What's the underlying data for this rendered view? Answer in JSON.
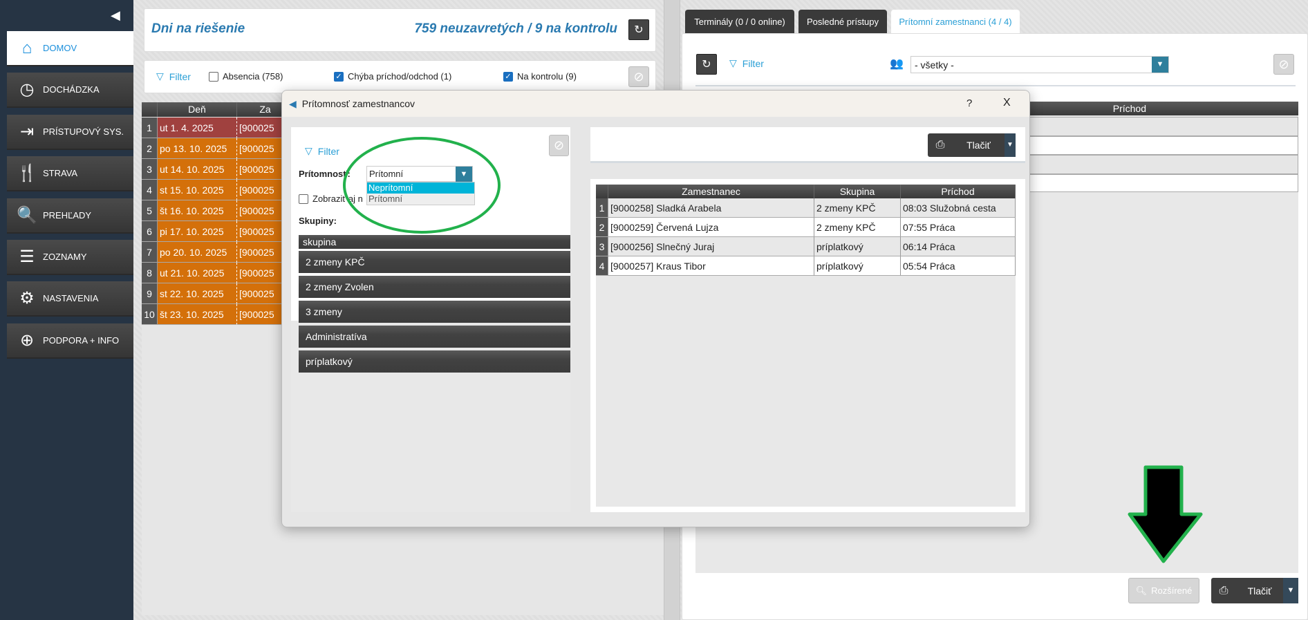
{
  "sidebar": {
    "items": [
      {
        "label": "DOMOV",
        "icon": "home-icon",
        "glyph": "⌂"
      },
      {
        "label": "DOCHÁDZKA",
        "icon": "clock-icon",
        "glyph": "◷"
      },
      {
        "label": "PRÍSTUPOVÝ SYS.",
        "icon": "sign-in-icon",
        "glyph": "⇥"
      },
      {
        "label": "STRAVA",
        "icon": "cutlery-icon",
        "glyph": "🍴"
      },
      {
        "label": "PREHĽADY",
        "icon": "search-icon",
        "glyph": "🔍"
      },
      {
        "label": "ZOZNAMY",
        "icon": "list-icon",
        "glyph": "☰"
      },
      {
        "label": "NASTAVENIA",
        "icon": "gear-icon",
        "glyph": "⚙"
      },
      {
        "label": "PODPORA + INFO",
        "icon": "lifebuoy-icon",
        "glyph": "⊕"
      }
    ]
  },
  "left": {
    "title": "Dni na riešenie",
    "summary": "759 neuzavretých / 9 na kontrolu",
    "filter": "Filter",
    "checks": [
      {
        "label": "Absencia (758)",
        "checked": false
      },
      {
        "label": "Chýba príchod/odchod (1)",
        "checked": true
      },
      {
        "label": "Na kontrolu (9)",
        "checked": true
      }
    ],
    "table": {
      "headers": [
        "Deň",
        "Za"
      ],
      "rows": [
        {
          "n": "1",
          "day": "ut 1. 4. 2025",
          "id": "[900025"
        },
        {
          "n": "2",
          "day": "po 13. 10. 2025",
          "id": "[900025"
        },
        {
          "n": "3",
          "day": "ut 14. 10. 2025",
          "id": "[900025"
        },
        {
          "n": "4",
          "day": "st 15. 10. 2025",
          "id": "[900025"
        },
        {
          "n": "5",
          "day": "št 16. 10. 2025",
          "id": "[900025"
        },
        {
          "n": "6",
          "day": "pi 17. 10. 2025",
          "id": "[900025"
        },
        {
          "n": "7",
          "day": "po 20. 10. 2025",
          "id": "[900025"
        },
        {
          "n": "8",
          "day": "ut 21. 10. 2025",
          "id": "[900025"
        },
        {
          "n": "9",
          "day": "st 22. 10. 2025",
          "id": "[900025"
        },
        {
          "n": "10",
          "day": "št 23. 10. 2025",
          "id": "[900025"
        }
      ]
    },
    "colors": {
      "red_row": "#a0413f",
      "orange_row": "#d4700a"
    }
  },
  "right": {
    "tabs": [
      "Terminály (0 / 0 online)",
      "Posledné prístupy",
      "Prítomní zamestnanci (4 / 4)"
    ],
    "filter": "Filter",
    "group_select": "- všetky -",
    "table_header": "Príchod",
    "advanced": "Rozšírené",
    "print": "Tlačiť"
  },
  "dialog": {
    "title": "Prítomnosť zamestnancov",
    "help": "?",
    "close": "X",
    "filter": "Filter",
    "presence_label": "Prítomnosť:",
    "presence_value": "Prítomní",
    "presence_options": [
      "Neprítomní",
      "Prítomní"
    ],
    "show_label": "Zobraziť aj n",
    "groups_label": "Skupiny:",
    "groups_header": "skupina",
    "groups": [
      "2 zmeny KPČ",
      "2 zmeny Zvolen",
      "3 zmeny",
      "Administratíva",
      "príplatkový"
    ],
    "print": "Tlačiť",
    "table": {
      "headers": [
        "Zamestnanec",
        "Skupina",
        "Príchod"
      ],
      "rows": [
        {
          "n": "1",
          "name": "[9000258] Sladká Arabela",
          "group": "2 zmeny KPČ",
          "arrival": "08:03 Služobná cesta"
        },
        {
          "n": "2",
          "name": "[9000259] Červená Lujza",
          "group": "2 zmeny KPČ",
          "arrival": "07:55 Práca"
        },
        {
          "n": "3",
          "name": "[9000256] Slnečný Juraj",
          "group": "príplatkový",
          "arrival": "06:14 Práca"
        },
        {
          "n": "4",
          "name": "[9000257] Kraus Tibor",
          "group": "príplatkový",
          "arrival": "05:54 Práca"
        }
      ]
    }
  },
  "annotation_colors": {
    "highlight": "#22b14c",
    "accent": "#2a9fd6",
    "selected_option": "#00b4d8"
  }
}
